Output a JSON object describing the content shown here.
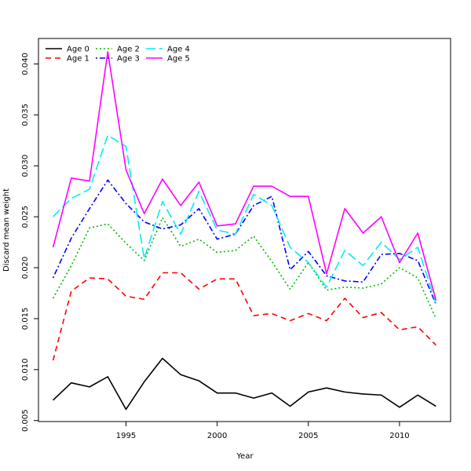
{
  "chart_data": {
    "type": "line",
    "title": "",
    "xlabel": "Year",
    "ylabel": "Discard mean weight",
    "xlim": [
      1990.2,
      2012.8
    ],
    "ylim": [
      0.0049,
      0.0425
    ],
    "xticks": [
      1995,
      2000,
      2005,
      2010
    ],
    "xtick_labels": [
      "1995",
      "2000",
      "2005",
      "2010"
    ],
    "yticks": [
      0.005,
      0.01,
      0.015,
      0.02,
      0.025,
      0.03,
      0.035,
      0.04
    ],
    "ytick_labels": [
      "0.005",
      "0.010",
      "0.015",
      "0.020",
      "0.025",
      "0.030",
      "0.035",
      "0.040"
    ],
    "grid": false,
    "legend_position": "top-left",
    "x": [
      1991,
      1992,
      1993,
      1994,
      1995,
      1996,
      1997,
      1998,
      1999,
      2000,
      2001,
      2002,
      2003,
      2004,
      2005,
      2006,
      2007,
      2008,
      2009,
      2010,
      2011,
      2012
    ],
    "series": [
      {
        "name": "Age 0",
        "color": "#000000",
        "dash": "solid",
        "values": [
          0.007,
          0.0087,
          0.0083,
          0.0093,
          0.0061,
          0.0088,
          0.0111,
          0.0095,
          0.0089,
          0.0077,
          0.0077,
          0.0072,
          0.0077,
          0.0064,
          0.0078,
          0.0082,
          0.0078,
          0.0076,
          0.0075,
          0.0063,
          0.0075,
          0.0064
        ]
      },
      {
        "name": "Age 1",
        "color": "#ff0000",
        "dash": "dashed",
        "values": [
          0.0109,
          0.0177,
          0.019,
          0.0189,
          0.0172,
          0.0169,
          0.0195,
          0.0195,
          0.0179,
          0.0189,
          0.0189,
          0.0153,
          0.0155,
          0.0148,
          0.0155,
          0.0148,
          0.017,
          0.0151,
          0.0156,
          0.0139,
          0.0142,
          0.0124
        ]
      },
      {
        "name": "Age 2",
        "color": "#00bb00",
        "dash": "dotted",
        "values": [
          0.017,
          0.0202,
          0.0239,
          0.0243,
          0.0224,
          0.0207,
          0.0249,
          0.0221,
          0.0228,
          0.0215,
          0.0217,
          0.0231,
          0.0206,
          0.0179,
          0.0205,
          0.0178,
          0.0181,
          0.018,
          0.0184,
          0.02,
          0.019,
          0.015
        ]
      },
      {
        "name": "Age 3",
        "color": "#0000ff",
        "dash": "dotdash",
        "values": [
          0.019,
          0.0229,
          0.0258,
          0.0286,
          0.0263,
          0.0245,
          0.0238,
          0.0242,
          0.0258,
          0.0228,
          0.0233,
          0.0261,
          0.027,
          0.0198,
          0.0216,
          0.0192,
          0.0187,
          0.0186,
          0.0213,
          0.0214,
          0.0207,
          0.0164
        ]
      },
      {
        "name": "Age 4",
        "color": "#00eeee",
        "dash": "longdash",
        "values": [
          0.025,
          0.0268,
          0.0277,
          0.033,
          0.0319,
          0.0209,
          0.0265,
          0.0233,
          0.0275,
          0.0237,
          0.0233,
          0.0272,
          0.0261,
          0.022,
          0.0205,
          0.0181,
          0.0217,
          0.0202,
          0.0225,
          0.0208,
          0.022,
          0.0165
        ]
      },
      {
        "name": "Age 5",
        "color": "#ff00ff",
        "dash": "solid",
        "values": [
          0.022,
          0.0288,
          0.0285,
          0.0412,
          0.0296,
          0.0253,
          0.0287,
          0.0261,
          0.0284,
          0.0241,
          0.0243,
          0.028,
          0.028,
          0.027,
          0.027,
          0.0194,
          0.0258,
          0.0234,
          0.025,
          0.0205,
          0.0234,
          0.0168
        ]
      }
    ]
  }
}
